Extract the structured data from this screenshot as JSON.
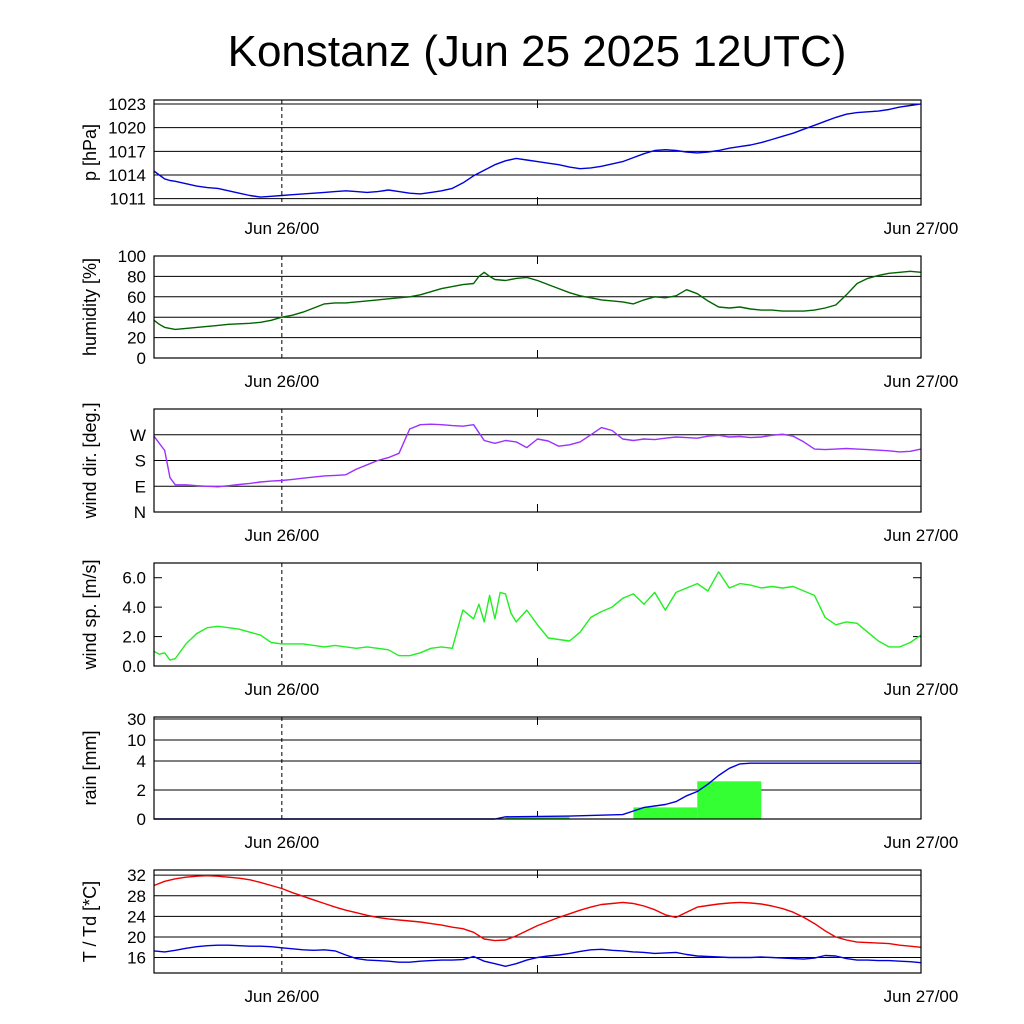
{
  "title": "Konstanz (Jun 25 2025 12UTC)",
  "x_tick_labels": [
    "Jun 26/00",
    "Jun 27/00"
  ],
  "colors": {
    "pressure": "#0000dd",
    "humidity": "#006400",
    "wind_dir": "#9b30ff",
    "wind_speed": "#22ee22",
    "rain_total": "#0000dd",
    "rain_bars": "#33ff33",
    "temperature": "#ee0000",
    "dewpoint": "#0000dd",
    "grid": "#000000"
  },
  "chart_data": [
    {
      "type": "line",
      "ylabel": "p [hPa]",
      "x_unit": "hours since Jun 25 12UTC",
      "ylim": [
        1010.2,
        1023.5
      ],
      "yticks": [
        1011,
        1014,
        1017,
        1020,
        1023
      ],
      "ytick_labels": [
        "1011",
        "1014",
        "1017",
        "1020",
        "1023"
      ],
      "grid": true,
      "series": [
        {
          "x": [
            0,
            0.5,
            1,
            1.5,
            2,
            3,
            4,
            5,
            6,
            7,
            8,
            9,
            10,
            11,
            12,
            13,
            14,
            15,
            16,
            17,
            18,
            19,
            20,
            21,
            22,
            23,
            24,
            25,
            26,
            27,
            28,
            29,
            30,
            31,
            32,
            33,
            34,
            35,
            36,
            37,
            38,
            39,
            40,
            41,
            42,
            43,
            44,
            45,
            46,
            47,
            48,
            49,
            50,
            51,
            52,
            53,
            54,
            55,
            56,
            57,
            58,
            59,
            60,
            61,
            62,
            63,
            64,
            65,
            66,
            67,
            68,
            69,
            70,
            71,
            72
          ],
          "y": [
            1014.5,
            1014.0,
            1013.5,
            1013.3,
            1013.2,
            1012.9,
            1012.6,
            1012.4,
            1012.3,
            1012.0,
            1011.7,
            1011.4,
            1011.2,
            1011.3,
            1011.4,
            1011.5,
            1011.6,
            1011.7,
            1011.8,
            1011.9,
            1012.0,
            1011.9,
            1011.8,
            1011.9,
            1012.1,
            1011.9,
            1011.7,
            1011.6,
            1011.8,
            1012.0,
            1012.3,
            1013.0,
            1013.9,
            1014.6,
            1015.3,
            1015.8,
            1016.1,
            1015.9,
            1015.7,
            1015.5,
            1015.3,
            1015.0,
            1014.8,
            1014.9,
            1015.1,
            1015.4,
            1015.7,
            1016.2,
            1016.7,
            1017.1,
            1017.2,
            1017.1,
            1016.9,
            1016.8,
            1016.9,
            1017.1,
            1017.4,
            1017.6,
            1017.8,
            1018.1,
            1018.5,
            1018.9,
            1019.3,
            1019.8,
            1020.3,
            1020.8,
            1021.3,
            1021.7,
            1021.9,
            1022.0,
            1022.1,
            1022.3,
            1022.6,
            1022.8,
            1023.0
          ]
        }
      ]
    },
    {
      "type": "line",
      "ylabel": "humidity [%]",
      "ylim": [
        0,
        100
      ],
      "yticks": [
        0,
        20,
        40,
        60,
        80,
        100
      ],
      "ytick_labels": [
        "0",
        "20",
        "40",
        "60",
        "80",
        "100"
      ],
      "grid": true,
      "series": [
        {
          "x": [
            0,
            0.5,
            1,
            2,
            3,
            4,
            5,
            6,
            7,
            8,
            9,
            10,
            11,
            12,
            13,
            14,
            15,
            16,
            17,
            18,
            19,
            20,
            21,
            22,
            23,
            24,
            25,
            26,
            27,
            28,
            29,
            30,
            30.5,
            31,
            31.5,
            32,
            33,
            34,
            35,
            36,
            37,
            38,
            39,
            40,
            41,
            42,
            43,
            44,
            45,
            46,
            47,
            48,
            49,
            50,
            51,
            52,
            53,
            54,
            55,
            56,
            57,
            58,
            59,
            60,
            61,
            62,
            63,
            64,
            65,
            66,
            67,
            68,
            69,
            70,
            71,
            72
          ],
          "y": [
            37,
            33,
            30,
            28,
            29,
            30,
            31,
            32,
            33,
            33.5,
            34,
            35,
            37,
            40,
            42,
            45,
            49,
            53,
            54,
            54,
            55,
            56,
            57,
            58,
            59,
            60,
            62,
            65,
            68,
            70,
            72,
            73,
            80,
            84,
            80,
            77,
            76,
            78,
            79,
            76,
            72,
            68,
            64,
            61,
            59,
            57,
            56,
            55,
            53,
            57,
            60,
            59,
            61,
            67,
            63,
            56,
            50,
            49,
            50,
            48,
            47,
            47,
            46,
            46,
            46,
            47,
            49,
            52,
            62,
            73,
            78,
            81,
            83,
            84,
            85,
            84
          ]
        }
      ]
    },
    {
      "type": "line",
      "ylabel": "wind dir. [deg.]",
      "ylim": [
        0,
        360
      ],
      "yticks": [
        0,
        90,
        180,
        270
      ],
      "ytick_labels": [
        "N",
        "E",
        "S",
        "W"
      ],
      "grid": true,
      "series": [
        {
          "x": [
            0,
            1,
            1.5,
            2,
            3,
            4,
            5,
            6,
            7,
            8,
            9,
            10,
            11,
            12,
            13,
            14,
            15,
            16,
            17,
            18,
            19,
            20,
            21,
            22,
            23,
            24,
            25,
            26,
            27,
            28,
            29,
            30,
            31,
            32,
            33,
            34,
            35,
            36,
            37,
            38,
            39,
            40,
            41,
            42,
            43,
            44,
            45,
            46,
            47,
            48,
            49,
            50,
            51,
            52,
            53,
            54,
            55,
            56,
            57,
            58,
            59,
            60,
            61,
            62,
            63,
            64,
            65,
            66,
            67,
            68,
            69,
            70,
            71,
            72
          ],
          "y": [
            265,
            215,
            120,
            95,
            95,
            92,
            90,
            88,
            92,
            96,
            100,
            105,
            108,
            110,
            114,
            118,
            122,
            126,
            128,
            130,
            150,
            165,
            180,
            190,
            205,
            290,
            305,
            307,
            305,
            302,
            300,
            305,
            250,
            240,
            250,
            245,
            225,
            255,
            248,
            230,
            235,
            245,
            270,
            295,
            285,
            255,
            250,
            255,
            253,
            258,
            262,
            260,
            258,
            265,
            268,
            262,
            264,
            260,
            262,
            268,
            272,
            265,
            245,
            220,
            218,
            220,
            222,
            220,
            218,
            216,
            214,
            210,
            212,
            220
          ]
        }
      ]
    },
    {
      "type": "line",
      "ylabel": "wind sp. [m/s]",
      "ylim": [
        0,
        7
      ],
      "yticks": [
        0,
        2,
        4,
        6
      ],
      "ytick_labels": [
        "0.0",
        "2.0",
        "4.0",
        "6.0"
      ],
      "grid": false,
      "series": [
        {
          "x": [
            0,
            0.5,
            1,
            1.5,
            2,
            3,
            4,
            5,
            6,
            7,
            8,
            9,
            10,
            11,
            12,
            13,
            14,
            15,
            16,
            17,
            18,
            19,
            20,
            21,
            22,
            23,
            24,
            25,
            26,
            27,
            28,
            29,
            30,
            30.5,
            31,
            31.5,
            32,
            32.5,
            33,
            33.5,
            34,
            35,
            36,
            37,
            38,
            39,
            40,
            41,
            42,
            43,
            44,
            45,
            46,
            47,
            48,
            49,
            50,
            51,
            52,
            53,
            54,
            55,
            56,
            57,
            58,
            59,
            60,
            61,
            62,
            63,
            64,
            65,
            66,
            67,
            68,
            69,
            70,
            71,
            72
          ],
          "y": [
            1.0,
            0.8,
            0.9,
            0.4,
            0.5,
            1.5,
            2.2,
            2.6,
            2.7,
            2.6,
            2.5,
            2.3,
            2.1,
            1.6,
            1.5,
            1.5,
            1.5,
            1.4,
            1.3,
            1.4,
            1.3,
            1.2,
            1.3,
            1.2,
            1.1,
            0.7,
            0.7,
            0.9,
            1.2,
            1.3,
            1.2,
            3.8,
            3.2,
            4.2,
            3.0,
            4.8,
            3.2,
            5.0,
            4.9,
            3.6,
            3.0,
            3.8,
            2.8,
            1.9,
            1.8,
            1.7,
            2.3,
            3.3,
            3.7,
            4.0,
            4.6,
            4.9,
            4.2,
            5.0,
            3.8,
            5.0,
            5.3,
            5.6,
            5.1,
            6.4,
            5.3,
            5.6,
            5.5,
            5.3,
            5.4,
            5.3,
            5.4,
            5.1,
            4.8,
            3.3,
            2.8,
            3.0,
            2.9,
            2.3,
            1.7,
            1.3,
            1.3,
            1.6,
            2.1
          ]
        }
      ]
    },
    {
      "type": "bar+line",
      "ylabel": "rain [mm]",
      "y_scale": "nonlinear (0,2,4,10,30 equally spaced)",
      "yticks": [
        0,
        2,
        4,
        10,
        30
      ],
      "ytick_labels": [
        "0",
        "2",
        "4",
        "10",
        "30"
      ],
      "grid": true,
      "bars": [
        {
          "x_start": 33,
          "x_end": 39,
          "value": 0.15
        },
        {
          "x_start": 45,
          "x_end": 51,
          "value": 0.8
        },
        {
          "x_start": 51,
          "x_end": 57,
          "value": 2.6
        }
      ],
      "series": [
        {
          "name": "accumulated",
          "x": [
            0,
            32,
            33,
            39,
            44,
            45,
            46,
            47,
            48,
            49,
            50,
            51,
            52,
            53,
            54,
            55,
            56,
            57,
            58,
            60,
            64,
            68,
            72
          ],
          "y": [
            0,
            0,
            0.15,
            0.2,
            0.3,
            0.55,
            0.8,
            0.9,
            1.0,
            1.2,
            1.6,
            1.9,
            2.4,
            3.0,
            3.5,
            3.8,
            3.85,
            3.85,
            3.85,
            3.85,
            3.85,
            3.85,
            3.85
          ]
        }
      ]
    },
    {
      "type": "line",
      "ylabel": "T / Td [*C]",
      "ylim": [
        13,
        33
      ],
      "yticks": [
        16,
        20,
        24,
        28,
        32
      ],
      "ytick_labels": [
        "16",
        "20",
        "24",
        "28",
        "32"
      ],
      "grid": true,
      "series": [
        {
          "x": [
            0,
            1,
            2,
            3,
            4,
            5,
            6,
            7,
            8,
            9,
            10,
            11,
            12,
            13,
            14,
            15,
            16,
            17,
            18,
            19,
            20,
            21,
            22,
            23,
            24,
            25,
            26,
            27,
            28,
            29,
            30,
            31,
            32,
            33,
            34,
            35,
            36,
            37,
            38,
            39,
            40,
            41,
            42,
            43,
            44,
            45,
            46,
            47,
            48,
            49,
            50,
            51,
            52,
            53,
            54,
            55,
            56,
            57,
            58,
            59,
            60,
            61,
            62,
            63,
            64,
            65,
            66,
            67,
            68,
            69,
            70,
            71,
            72
          ],
          "y": [
            30,
            30.8,
            31.3,
            31.6,
            31.8,
            31.9,
            31.8,
            31.6,
            31.4,
            31.1,
            30.6,
            30.0,
            29.4,
            28.6,
            27.9,
            27.2,
            26.5,
            25.8,
            25.2,
            24.7,
            24.2,
            23.8,
            23.5,
            23.3,
            23.1,
            22.9,
            22.6,
            22.3,
            21.9,
            21.6,
            20.9,
            19.6,
            19.3,
            19.4,
            20.2,
            21.2,
            22.2,
            23.0,
            23.8,
            24.5,
            25.2,
            25.8,
            26.3,
            26.5,
            26.7,
            26.5,
            26.0,
            25.3,
            24.3,
            23.8,
            24.8,
            25.8,
            26.1,
            26.4,
            26.6,
            26.7,
            26.6,
            26.4,
            26.0,
            25.5,
            24.8,
            23.8,
            22.6,
            21.2,
            20.0,
            19.4,
            19.0,
            18.9,
            18.8,
            18.7,
            18.4,
            18.2,
            18.0
          ]
        },
        {
          "x": [
            0,
            1,
            2,
            3,
            4,
            5,
            6,
            7,
            8,
            9,
            10,
            11,
            12,
            13,
            14,
            15,
            16,
            17,
            18,
            19,
            20,
            21,
            22,
            23,
            24,
            25,
            26,
            27,
            28,
            29,
            30,
            31,
            32,
            33,
            34,
            35,
            36,
            37,
            38,
            39,
            40,
            41,
            42,
            43,
            44,
            45,
            46,
            47,
            48,
            49,
            50,
            51,
            52,
            53,
            54,
            55,
            56,
            57,
            58,
            59,
            60,
            61,
            62,
            63,
            64,
            65,
            66,
            67,
            68,
            69,
            70,
            71,
            72
          ],
          "y": [
            17.3,
            17.1,
            17.4,
            17.8,
            18.1,
            18.3,
            18.4,
            18.4,
            18.3,
            18.2,
            18.2,
            18.1,
            17.9,
            17.7,
            17.5,
            17.4,
            17.5,
            17.3,
            16.5,
            15.8,
            15.5,
            15.4,
            15.3,
            15.1,
            15.1,
            15.3,
            15.4,
            15.5,
            15.5,
            15.6,
            16.2,
            15.3,
            14.8,
            14.3,
            14.8,
            15.5,
            16.0,
            16.3,
            16.5,
            16.8,
            17.2,
            17.5,
            17.6,
            17.4,
            17.3,
            17.1,
            17.0,
            16.8,
            16.9,
            17.0,
            16.6,
            16.3,
            16.2,
            16.1,
            16.0,
            16.0,
            16.0,
            16.1,
            16.0,
            15.9,
            15.8,
            15.7,
            15.9,
            16.4,
            16.3,
            15.8,
            15.5,
            15.5,
            15.4,
            15.4,
            15.3,
            15.2,
            15.0
          ]
        }
      ]
    }
  ]
}
